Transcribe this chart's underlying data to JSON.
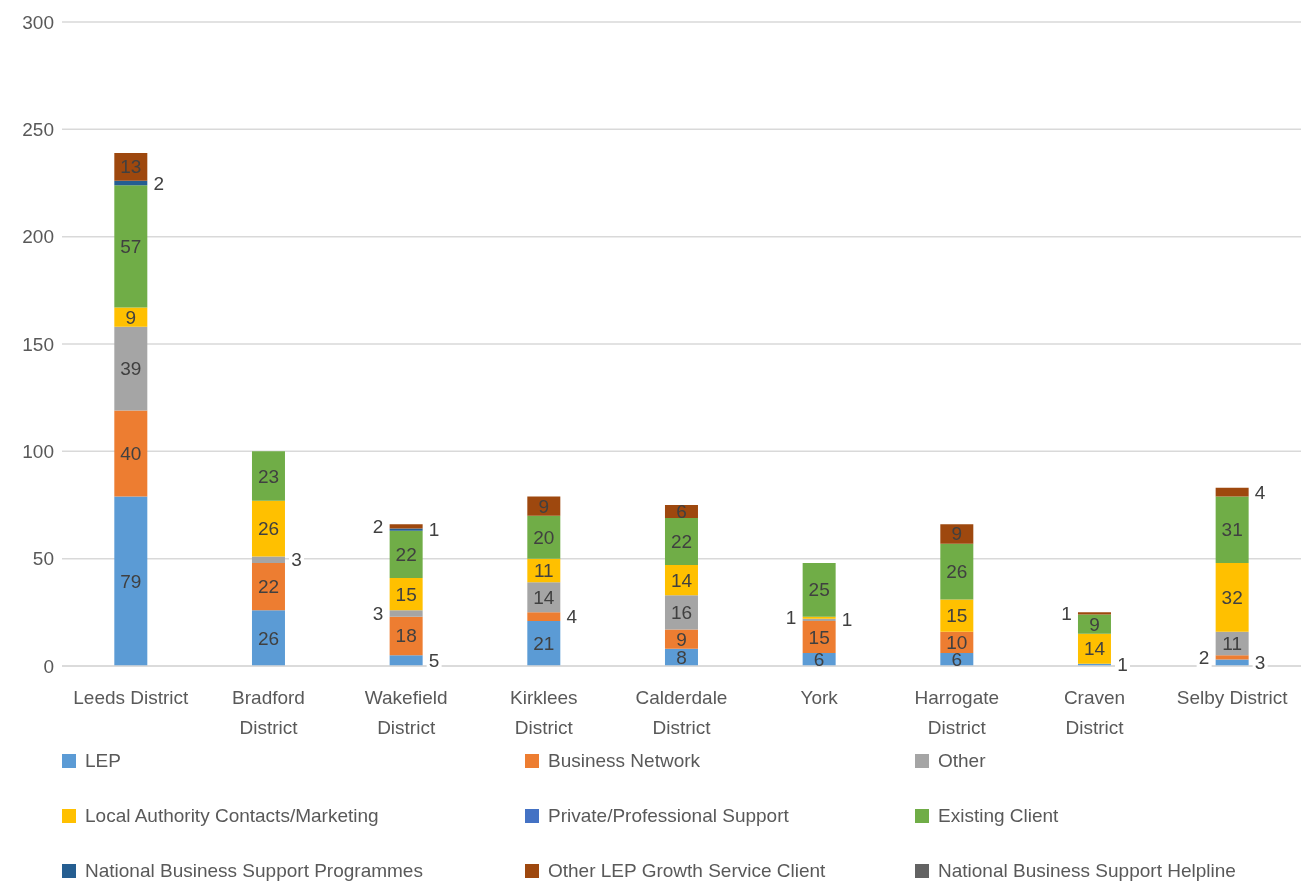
{
  "chart_data": {
    "type": "bar",
    "stacked": true,
    "categories": [
      "Leeds District",
      "Bradford District",
      "Wakefield District",
      "Kirklees District",
      "Calderdale District",
      "York",
      "Harrogate District",
      "Craven District",
      "Selby District"
    ],
    "series": [
      {
        "name": "LEP",
        "color": "#5b9bd5",
        "values": [
          79,
          26,
          5,
          21,
          8,
          6,
          6,
          1,
          3
        ],
        "value_labels": [
          "79",
          "26",
          "5",
          "21",
          "8",
          "6",
          "6",
          "1",
          "3"
        ]
      },
      {
        "name": "Business Network",
        "color": "#ed7d31",
        "values": [
          40,
          22,
          18,
          4,
          9,
          15,
          10,
          0,
          2
        ],
        "value_labels": [
          "40",
          "22",
          "18",
          "4",
          "9",
          "15",
          "10",
          null,
          "2"
        ]
      },
      {
        "name": "Other",
        "color": "#a5a5a5",
        "values": [
          39,
          3,
          3,
          14,
          16,
          1,
          0,
          0,
          11
        ],
        "value_labels": [
          "39",
          "3",
          "3",
          "14",
          "16",
          "1",
          null,
          null,
          "11"
        ]
      },
      {
        "name": "Local Authority Contacts/Marketing",
        "color": "#ffc000",
        "values": [
          9,
          26,
          15,
          11,
          14,
          1,
          15,
          14,
          32
        ],
        "value_labels": [
          "9",
          "26",
          "15",
          "11",
          "14",
          "1",
          "15",
          "14",
          "32"
        ]
      },
      {
        "name": "Private/Professional Support",
        "color": "#4472c4",
        "values": [
          0,
          0,
          0,
          0,
          0,
          0,
          0,
          0,
          0
        ],
        "value_labels": [
          null,
          null,
          null,
          null,
          null,
          null,
          null,
          null,
          null
        ]
      },
      {
        "name": "Existing Client",
        "color": "#70ad47",
        "values": [
          57,
          23,
          22,
          20,
          22,
          25,
          26,
          9,
          31
        ],
        "value_labels": [
          "57",
          "23",
          "22",
          "20",
          "22",
          "25",
          "26",
          "9",
          "31"
        ]
      },
      {
        "name": "National Business Support Programmes",
        "color": "#255e91",
        "values": [
          2,
          0,
          1,
          0,
          0,
          0,
          0,
          0,
          0
        ],
        "value_labels": [
          "2",
          null,
          "1",
          null,
          null,
          null,
          null,
          null,
          null
        ]
      },
      {
        "name": "Other LEP Growth Service Client",
        "color": "#9e480e",
        "values": [
          13,
          0,
          2,
          9,
          6,
          0,
          9,
          1,
          4
        ],
        "value_labels": [
          "13",
          null,
          "2",
          "9",
          "6",
          null,
          "9",
          "1",
          "4"
        ]
      },
      {
        "name": "National Business Support Helpline",
        "color": "#636363",
        "values": [
          0,
          0,
          0,
          0,
          0,
          0,
          0,
          0,
          0
        ],
        "value_labels": [
          null,
          null,
          null,
          null,
          null,
          null,
          null,
          null,
          null
        ]
      }
    ],
    "ylim": [
      0,
      300
    ],
    "yticks": [
      0,
      50,
      100,
      150,
      200,
      250,
      300
    ],
    "grid": "y",
    "legend": "bottom"
  }
}
